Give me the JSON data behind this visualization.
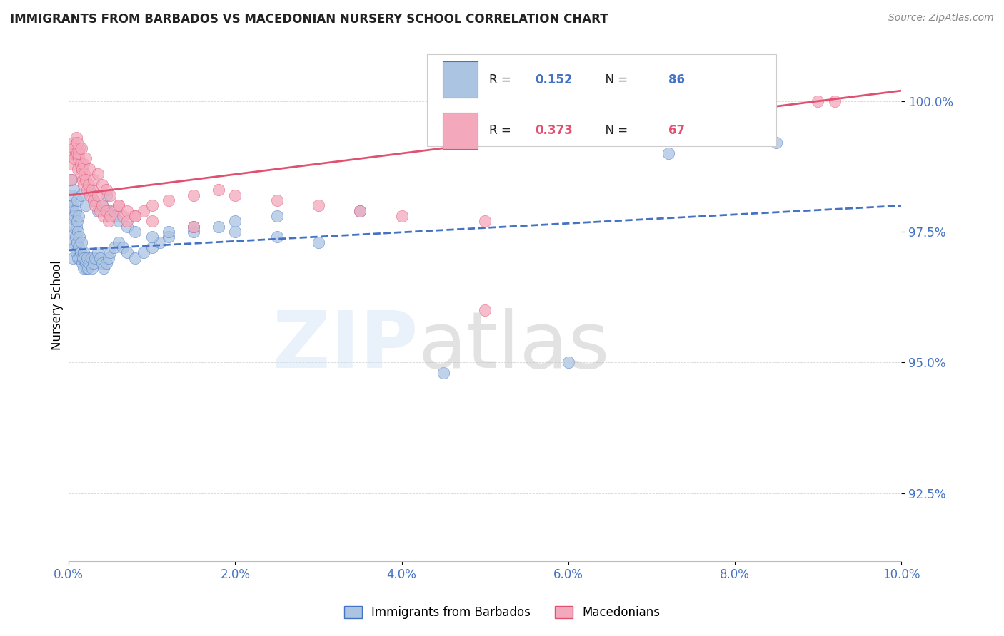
{
  "title": "IMMIGRANTS FROM BARBADOS VS MACEDONIAN NURSERY SCHOOL CORRELATION CHART",
  "source": "Source: ZipAtlas.com",
  "ylabel": "Nursery School",
  "ytick_values": [
    92.5,
    95.0,
    97.5,
    100.0
  ],
  "xmin": 0.0,
  "xmax": 10.0,
  "ymin": 91.2,
  "ymax": 101.0,
  "legend_label1": "Immigrants from Barbados",
  "legend_label2": "Macedonians",
  "R1": 0.152,
  "N1": 86,
  "R2": 0.373,
  "N2": 67,
  "color1": "#aac4e2",
  "color2": "#f4a8bc",
  "line_color1": "#4472c4",
  "line_color2": "#e05070",
  "title_color": "#222222",
  "axis_color": "#4472c4",
  "barbados_x": [
    0.02,
    0.03,
    0.03,
    0.04,
    0.04,
    0.05,
    0.05,
    0.05,
    0.06,
    0.06,
    0.06,
    0.07,
    0.07,
    0.08,
    0.08,
    0.09,
    0.09,
    0.1,
    0.1,
    0.1,
    0.11,
    0.11,
    0.12,
    0.12,
    0.13,
    0.13,
    0.14,
    0.15,
    0.15,
    0.16,
    0.17,
    0.18,
    0.18,
    0.19,
    0.2,
    0.21,
    0.22,
    0.23,
    0.25,
    0.27,
    0.28,
    0.3,
    0.32,
    0.35,
    0.38,
    0.4,
    0.42,
    0.45,
    0.48,
    0.5,
    0.55,
    0.6,
    0.65,
    0.7,
    0.8,
    0.9,
    1.0,
    1.1,
    1.2,
    1.5,
    1.8,
    2.0,
    2.5,
    3.0,
    0.15,
    0.2,
    0.25,
    0.3,
    0.35,
    0.4,
    0.45,
    0.5,
    0.55,
    0.6,
    0.7,
    0.8,
    1.0,
    1.2,
    1.5,
    2.0,
    2.5,
    3.5,
    4.5,
    6.0,
    7.2,
    8.5
  ],
  "barbados_y": [
    98.0,
    97.8,
    98.5,
    97.5,
    98.2,
    97.3,
    98.0,
    97.0,
    97.6,
    97.9,
    98.3,
    97.2,
    97.8,
    97.4,
    97.9,
    97.1,
    97.6,
    97.3,
    97.7,
    98.1,
    97.0,
    97.5,
    97.2,
    97.8,
    97.0,
    97.4,
    97.1,
    97.0,
    97.3,
    96.9,
    97.0,
    97.1,
    96.8,
    97.0,
    96.9,
    96.8,
    97.0,
    96.8,
    96.9,
    97.0,
    96.8,
    96.9,
    97.0,
    97.1,
    97.0,
    96.9,
    96.8,
    96.9,
    97.0,
    97.1,
    97.2,
    97.3,
    97.2,
    97.1,
    97.0,
    97.1,
    97.2,
    97.3,
    97.4,
    97.5,
    97.6,
    97.5,
    97.4,
    97.3,
    98.2,
    98.0,
    98.3,
    98.1,
    97.9,
    98.0,
    98.2,
    97.9,
    97.8,
    97.7,
    97.6,
    97.5,
    97.4,
    97.5,
    97.6,
    97.7,
    97.8,
    97.9,
    94.8,
    95.0,
    99.0,
    99.2
  ],
  "macedonian_x": [
    0.02,
    0.03,
    0.04,
    0.05,
    0.06,
    0.07,
    0.08,
    0.09,
    0.1,
    0.11,
    0.12,
    0.13,
    0.14,
    0.15,
    0.16,
    0.17,
    0.18,
    0.19,
    0.2,
    0.22,
    0.24,
    0.26,
    0.28,
    0.3,
    0.32,
    0.35,
    0.38,
    0.4,
    0.42,
    0.45,
    0.48,
    0.5,
    0.55,
    0.6,
    0.65,
    0.7,
    0.8,
    0.9,
    1.0,
    1.2,
    1.5,
    1.8,
    2.0,
    2.5,
    3.0,
    3.5,
    4.0,
    5.0,
    0.1,
    0.12,
    0.15,
    0.18,
    0.2,
    0.25,
    0.3,
    0.35,
    0.4,
    0.45,
    0.5,
    0.6,
    0.7,
    0.8,
    1.0,
    1.5,
    5.0,
    9.0,
    9.2
  ],
  "macedonian_y": [
    98.5,
    98.8,
    99.0,
    99.2,
    99.1,
    98.9,
    99.0,
    99.3,
    99.0,
    98.7,
    98.9,
    99.1,
    98.8,
    98.6,
    98.7,
    98.5,
    98.4,
    98.6,
    98.5,
    98.3,
    98.4,
    98.2,
    98.3,
    98.1,
    98.0,
    98.2,
    97.9,
    98.0,
    97.8,
    97.9,
    97.7,
    97.8,
    97.9,
    98.0,
    97.8,
    97.7,
    97.8,
    97.9,
    98.0,
    98.1,
    98.2,
    98.3,
    98.2,
    98.1,
    98.0,
    97.9,
    97.8,
    97.7,
    99.2,
    99.0,
    99.1,
    98.8,
    98.9,
    98.7,
    98.5,
    98.6,
    98.4,
    98.3,
    98.2,
    98.0,
    97.9,
    97.8,
    97.7,
    97.6,
    96.0,
    100.0,
    100.0
  ]
}
